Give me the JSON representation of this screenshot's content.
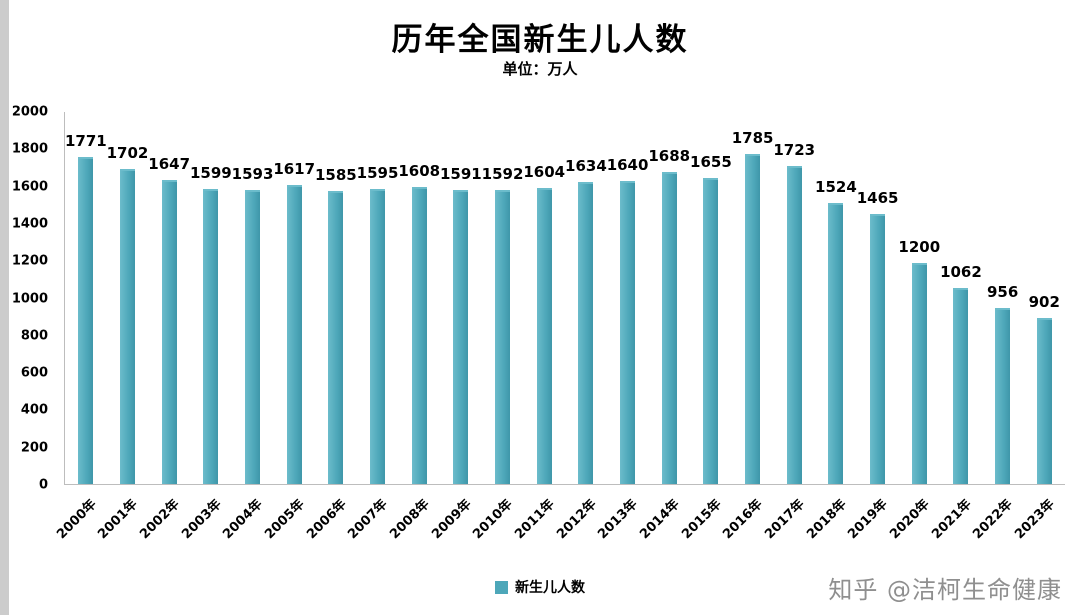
{
  "chart_data": {
    "type": "bar",
    "title": "历年全国新生儿人数",
    "subtitle": "单位：万人",
    "legend": [
      "新生儿人数"
    ],
    "legend_position": "bottom-center",
    "grid": false,
    "xlabel": "",
    "ylabel": "",
    "ylim": [
      0,
      2000
    ],
    "yticks": [
      "0",
      "200",
      "400",
      "600",
      "800",
      "1000",
      "1200",
      "1400",
      "1600",
      "1800",
      "2000"
    ],
    "categories": [
      "2000年",
      "2001年",
      "2002年",
      "2003年",
      "2004年",
      "2005年",
      "2006年",
      "2007年",
      "2008年",
      "2009年",
      "2010年",
      "2011年",
      "2012年",
      "2013年",
      "2014年",
      "2015年",
      "2016年",
      "2017年",
      "2018年",
      "2019年",
      "2020年",
      "2021年",
      "2022年",
      "2023年"
    ],
    "values": [
      1771,
      1702,
      1647,
      1599,
      1593,
      1617,
      1585,
      1595,
      1608,
      1591,
      1592,
      1604,
      1634,
      1640,
      1688,
      1655,
      1785,
      1723,
      1524,
      1465,
      1200,
      1062,
      956,
      902
    ]
  },
  "colors": {
    "bar": "#4da7b9",
    "bar_light": "#6cbccb",
    "bar_dark": "#3f96a9",
    "axis": "#bdbdbd",
    "watermark": "#8f8f8f"
  },
  "watermark": {
    "text": "知乎 @洁柯生命健康"
  }
}
